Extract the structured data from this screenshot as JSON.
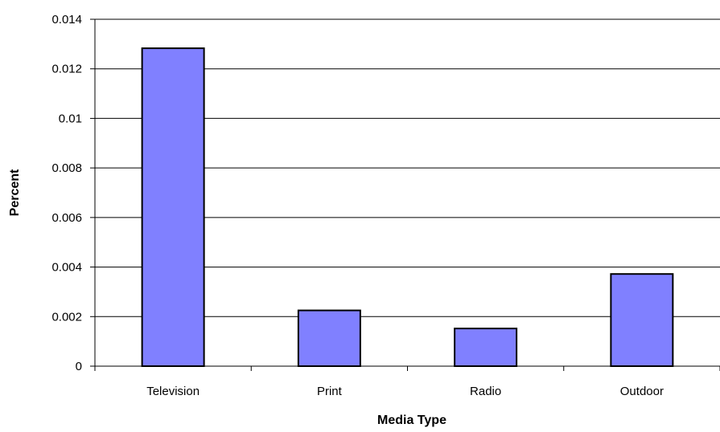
{
  "chart_data": {
    "type": "bar",
    "categories": [
      "Television",
      "Print",
      "Radio",
      "Outdoor"
    ],
    "values": [
      0.01283,
      0.00225,
      0.00152,
      0.00372
    ],
    "xlabel": "Media Type",
    "ylabel": "Percent",
    "ylim": [
      0,
      0.014
    ],
    "yticks": [
      "0",
      "0.002",
      "0.004",
      "0.006",
      "0.008",
      "0.01",
      "0.012",
      "0.014"
    ],
    "grid": "horizontal",
    "legend": "none",
    "colors": {
      "bar_fill": "#8080ff",
      "bar_stroke": "#000000",
      "grid": "#000000",
      "axis": "#000000"
    }
  }
}
